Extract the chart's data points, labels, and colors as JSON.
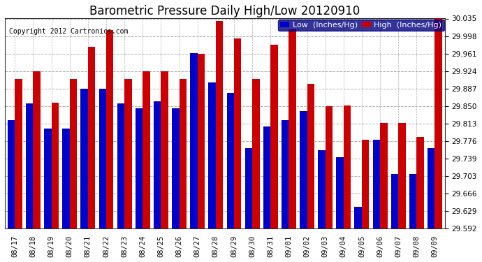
{
  "title": "Barometric Pressure Daily High/Low 20120910",
  "copyright": "Copyright 2012 Cartronics.com",
  "legend_low": "Low  (Inches/Hg)",
  "legend_high": "High  (Inches/Hg)",
  "ylim": [
    29.592,
    30.035
  ],
  "ybase": 29.592,
  "yticks": [
    29.592,
    29.629,
    29.666,
    29.703,
    29.739,
    29.776,
    29.813,
    29.85,
    29.887,
    29.924,
    29.961,
    29.998,
    30.035
  ],
  "dates": [
    "08/17",
    "08/18",
    "08/19",
    "08/20",
    "08/21",
    "08/22",
    "08/23",
    "08/24",
    "08/25",
    "08/26",
    "08/27",
    "08/28",
    "08/29",
    "08/30",
    "08/31",
    "09/01",
    "09/02",
    "09/03",
    "09/04",
    "09/05",
    "09/06",
    "09/07",
    "09/08",
    "09/09"
  ],
  "low": [
    29.82,
    29.856,
    29.803,
    29.803,
    29.887,
    29.887,
    29.856,
    29.845,
    29.86,
    29.845,
    29.962,
    29.9,
    29.878,
    29.762,
    29.808,
    29.82,
    29.84,
    29.757,
    29.742,
    29.638,
    29.78,
    29.707,
    29.707,
    29.762
  ],
  "high": [
    29.908,
    29.924,
    29.858,
    29.908,
    29.975,
    30.01,
    29.908,
    29.924,
    29.924,
    29.908,
    29.961,
    30.03,
    29.993,
    29.908,
    29.98,
    30.012,
    29.897,
    29.85,
    29.851,
    29.78,
    29.815,
    29.815,
    29.785,
    30.035
  ],
  "bar_color_low": "#0000cc",
  "bar_color_high": "#cc0000",
  "bg_color": "#ffffff",
  "grid_color": "#b0b0b0",
  "title_fontsize": 12,
  "copyright_fontsize": 7,
  "tick_fontsize": 7.5,
  "legend_fontsize": 8,
  "bar_width": 0.4
}
